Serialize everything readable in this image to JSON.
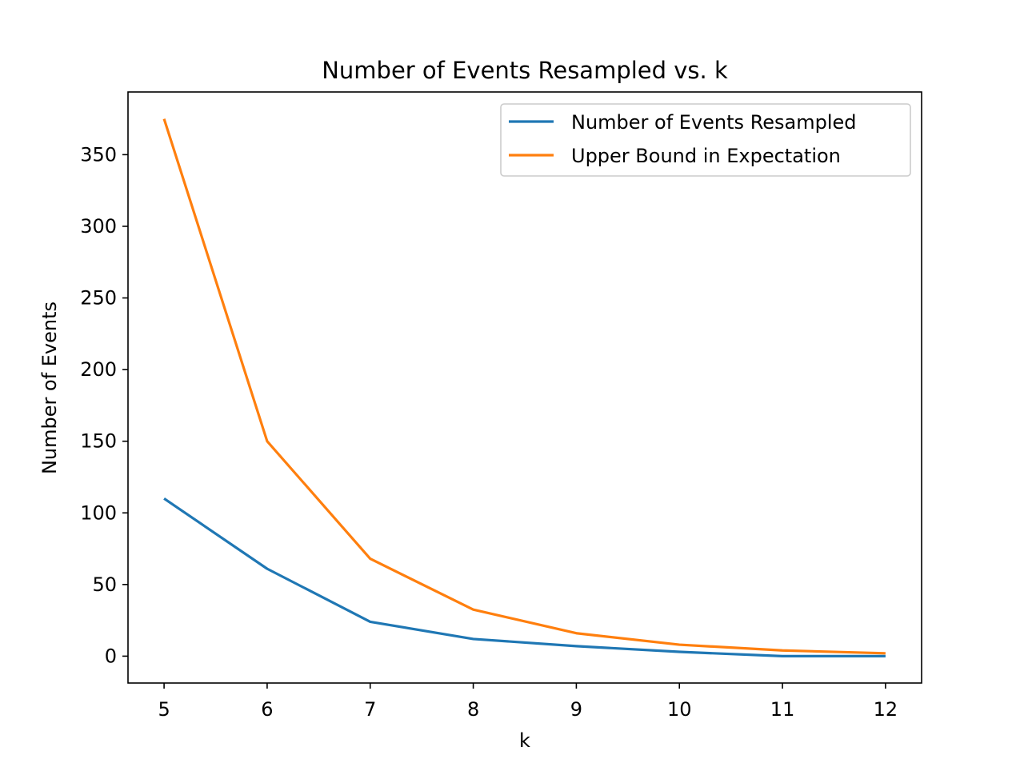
{
  "chart_data": {
    "type": "line",
    "title": "Number of Events Resampled vs. k",
    "xlabel": "k",
    "ylabel": "Number of Events",
    "x": [
      5,
      6,
      7,
      8,
      9,
      10,
      11,
      12
    ],
    "xticks": [
      5,
      6,
      7,
      8,
      9,
      10,
      11,
      12
    ],
    "yticks": [
      0,
      50,
      100,
      150,
      200,
      250,
      300,
      350
    ],
    "xlim": [
      4.65,
      12.35
    ],
    "ylim": [
      -18.75,
      393.75
    ],
    "grid": false,
    "legend_position": "top-right",
    "series": [
      {
        "name": "Number of Events Resampled",
        "color": "#1f77b4",
        "values": [
          110,
          61,
          24,
          12,
          7,
          3,
          0,
          0
        ]
      },
      {
        "name": "Upper Bound in Expectation",
        "color": "#ff7f0e",
        "values": [
          375,
          150,
          68,
          32.5,
          16,
          8,
          4,
          2
        ]
      }
    ]
  }
}
